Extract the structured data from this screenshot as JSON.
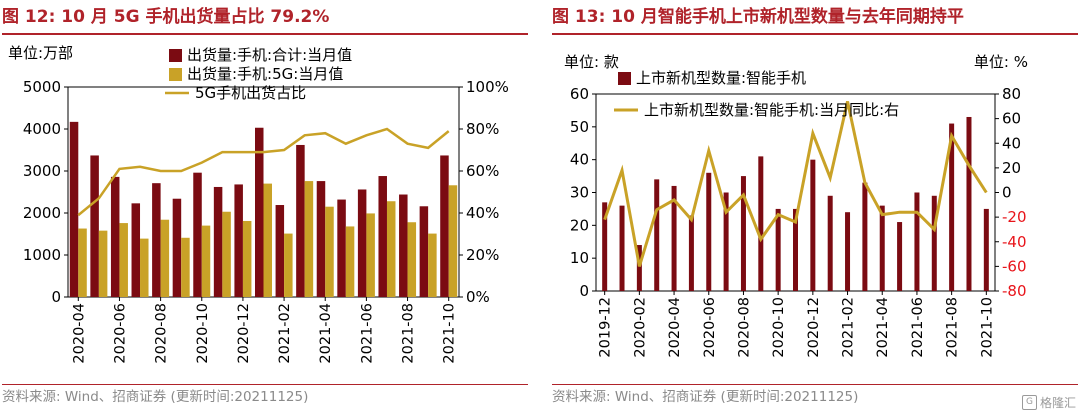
{
  "left": {
    "title": "图 12:  10 月 5G 手机出货量占比 79.2%",
    "source": "资料来源: Wind、招商证券 (更新时间:20211125)",
    "unit_left": "单位:万部",
    "colors": {
      "bar1": "#7b0b12",
      "bar2": "#c9a227",
      "line": "#c9a227"
    }
  },
  "right": {
    "title": "图 13:  10 月智能手机上市新机型数量与去年同期持平",
    "source": "资料来源: Wind、招商证券 (更新时间:20211125)",
    "unit_left": "单位: 款",
    "unit_right": "单位:   %",
    "colors": {
      "bar": "#7b0b12",
      "line": "#c9a227",
      "right_axis": "#e8141a"
    }
  },
  "watermark": "格隆汇",
  "chart_data": [
    {
      "type": "bar",
      "categories": [
        "2020-04",
        "2020-05",
        "2020-06",
        "2020-07",
        "2020-08",
        "2020-09",
        "2020-10",
        "2020-11",
        "2020-12",
        "2021-01",
        "2021-02",
        "2021-03",
        "2021-04",
        "2021-05",
        "2021-06",
        "2021-07",
        "2021-08",
        "2021-09",
        "2021-10"
      ],
      "x_tick_labels": [
        "2020-04",
        "2020-06",
        "2020-08",
        "2020-10",
        "2020-12",
        "2021-02",
        "2021-04",
        "2021-06",
        "2021-08",
        "2021-10"
      ],
      "series": [
        {
          "name": "出货量:手机:合计:当月值",
          "kind": "bar",
          "axis": "left",
          "values": [
            4170,
            3370,
            2860,
            2230,
            2710,
            2340,
            2960,
            2620,
            2680,
            4030,
            2190,
            3620,
            2760,
            2320,
            2560,
            2880,
            2440,
            2160,
            3370
          ]
        },
        {
          "name": "出货量:手机:5G:当月值",
          "kind": "bar",
          "axis": "left",
          "values": [
            1630,
            1580,
            1760,
            1390,
            1840,
            1410,
            1700,
            2030,
            1810,
            2700,
            1510,
            2760,
            2150,
            1680,
            1990,
            2280,
            1780,
            1510,
            2660
          ]
        },
        {
          "name": "5G手机出货占比",
          "kind": "line",
          "axis": "right",
          "values": [
            39,
            47,
            61,
            62,
            60,
            60,
            64,
            69,
            69,
            69,
            70,
            77,
            78,
            73,
            77,
            80,
            73,
            71,
            79
          ]
        }
      ],
      "yleft": {
        "min": 0,
        "max": 5000,
        "ticks": [
          "0",
          "1000",
          "2000",
          "3000",
          "4000",
          "5000"
        ]
      },
      "yright": {
        "min": 0,
        "max": 100,
        "ticks": [
          "0%",
          "20%",
          "40%",
          "60%",
          "80%",
          "100%"
        ]
      },
      "grid": false,
      "legend": "top-left"
    },
    {
      "type": "bar",
      "categories": [
        "2019-12",
        "2020-01",
        "2020-02",
        "2020-03",
        "2020-04",
        "2020-05",
        "2020-06",
        "2020-07",
        "2020-08",
        "2020-09",
        "2020-10",
        "2020-11",
        "2020-12",
        "2021-01",
        "2021-02",
        "2021-03",
        "2021-04",
        "2021-05",
        "2021-06",
        "2021-07",
        "2021-08",
        "2021-09",
        "2021-10"
      ],
      "x_tick_labels": [
        "2019-12",
        "2020-02",
        "2020-04",
        "2020-06",
        "2020-08",
        "2020-10",
        "2020-12",
        "2021-02",
        "2021-04",
        "2021-06",
        "2021-08",
        "2021-10"
      ],
      "series": [
        {
          "name": "上市新机型数量:智能手机",
          "kind": "bar",
          "axis": "left",
          "values": [
            27,
            26,
            14,
            34,
            32,
            23,
            36,
            30,
            35,
            41,
            25,
            25,
            40,
            29,
            24,
            33,
            26,
            21,
            30,
            29,
            51,
            53,
            25
          ]
        },
        {
          "name": "上市新机型数量:智能手机:当月同比:右",
          "kind": "line",
          "axis": "right",
          "values": [
            -22,
            18,
            -60,
            -14,
            -6,
            -22,
            34,
            -16,
            -2,
            -38,
            -18,
            -24,
            48,
            12,
            74,
            8,
            -18,
            -16,
            -16,
            -30,
            46,
            22,
            0
          ]
        }
      ],
      "yleft": {
        "min": 0,
        "max": 60,
        "ticks": [
          "0",
          "10",
          "20",
          "30",
          "40",
          "50",
          "60"
        ]
      },
      "yright": {
        "min": -80,
        "max": 80,
        "ticks": [
          "-80",
          "-60",
          "-40",
          "-20",
          "0",
          "20",
          "40",
          "60",
          "80"
        ]
      },
      "grid": false,
      "legend": "top-left"
    }
  ]
}
